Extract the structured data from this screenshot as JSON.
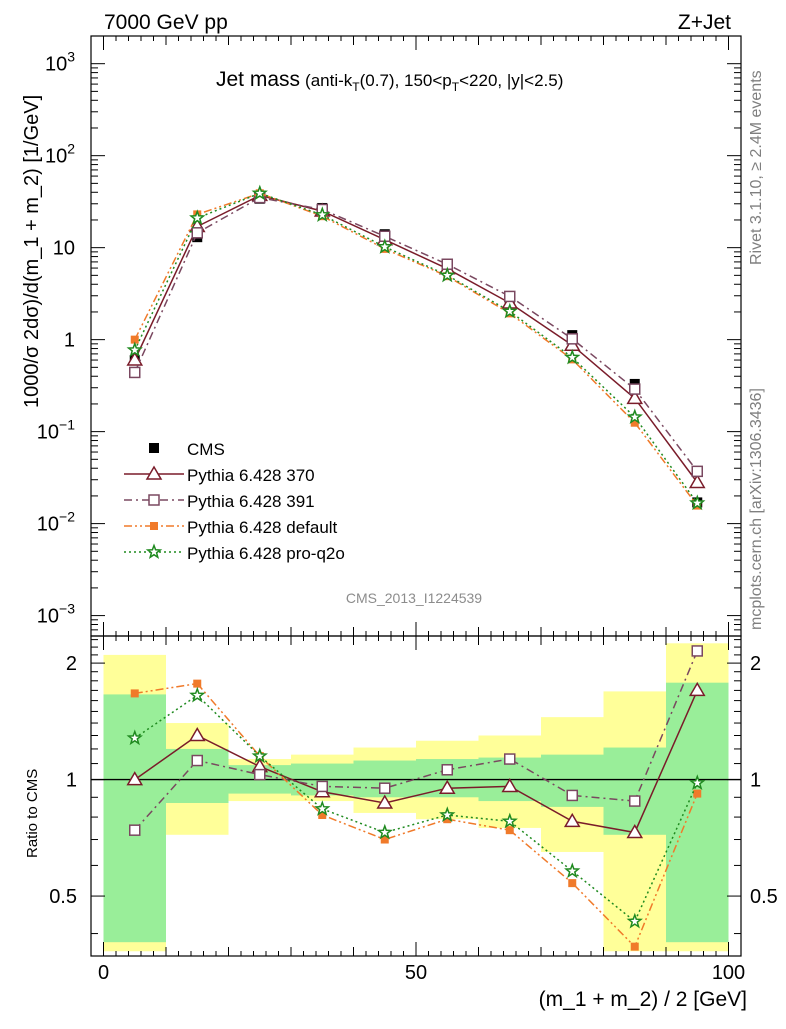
{
  "header": {
    "energy": "7000 GeV pp",
    "process": "Z+Jet",
    "rivet": "Rivet 3.1.10, ≥ 2.4M events",
    "source": "mcplots.cern.ch [arXiv:1306.3436]",
    "analysis": "CMS_2013_I1224539"
  },
  "chart_data": [
    {
      "panel": "main",
      "type": "line",
      "title": "Jet mass",
      "title_sub": {
        "pre": "(anti-k",
        "sub1": "T",
        "mid": "(0.7), 150<p",
        "sub2": "T",
        "post": "<220, |y|<2.5)"
      },
      "ylabel": "1000/σ 2dσ)/d(m_1 + m_2) [1/GeV]",
      "xlabel": "(m_1 + m_2) / 2 [GeV]",
      "xlim": [
        -2,
        102
      ],
      "ylim": [
        0.0006,
        2000
      ],
      "yscale": "log",
      "x_ticks": [
        "0",
        "50",
        "100"
      ],
      "y_ticks": [
        {
          "base": "10",
          "exp": "−3"
        },
        {
          "base": "10",
          "exp": "−2"
        },
        {
          "base": "10",
          "exp": "−1"
        },
        {
          "base": "1",
          "exp": ""
        },
        {
          "base": "10",
          "exp": ""
        },
        {
          "base": "10",
          "exp": "2"
        },
        {
          "base": "10",
          "exp": "3"
        }
      ],
      "legend_position": "bottom-left",
      "x": [
        5,
        15,
        25,
        35,
        45,
        55,
        65,
        75,
        85,
        95
      ],
      "series": [
        {
          "name": "CMS",
          "color": "#000000",
          "marker": "filled-square",
          "line": "none",
          "values": [
            0.6,
            13,
            34,
            27,
            14,
            6.2,
            2.6,
            1.12,
            0.33,
            0.017
          ]
        },
        {
          "name": "Pythia 6.428 370",
          "color": "#7a1c2a",
          "marker": "open-triangle",
          "line": "solid",
          "values": [
            0.6,
            17,
            37,
            25,
            12.2,
            5.9,
            2.5,
            0.87,
            0.23,
            0.028
          ]
        },
        {
          "name": "Pythia 6.428 391",
          "color": "#7a4860",
          "marker": "open-square",
          "line": "dashdot",
          "values": [
            0.44,
            14.5,
            35,
            26,
            13.3,
            6.6,
            2.95,
            1.02,
            0.29,
            0.037
          ]
        },
        {
          "name": "Pythia 6.428 default",
          "color": "#f07a2a",
          "marker": "filled-square-small",
          "line": "dashdotdot",
          "values": [
            1.0,
            23,
            39,
            22,
            9.7,
            4.9,
            1.93,
            0.61,
            0.125,
            0.0157
          ]
        },
        {
          "name": "Pythia 6.428 pro-q2o",
          "color": "#1f8a1f",
          "marker": "open-star",
          "line": "dotted",
          "values": [
            0.77,
            21,
            39,
            22.7,
            10.2,
            5.0,
            2.03,
            0.64,
            0.144,
            0.0167
          ]
        }
      ]
    },
    {
      "panel": "ratio",
      "type": "line",
      "ylabel": "Ratio to CMS",
      "xlabel": "(m_1 + m_2) / 2 [GeV]",
      "xlim": [
        -2,
        102
      ],
      "ylim": [
        0.35,
        2.35
      ],
      "yscale": "log",
      "y_ticks": [
        "0.5",
        "1",
        "2"
      ],
      "reference": 1.0,
      "bins": [
        [
          0,
          10
        ],
        [
          10,
          20
        ],
        [
          20,
          30
        ],
        [
          30,
          40
        ],
        [
          40,
          50
        ],
        [
          50,
          60
        ],
        [
          60,
          70
        ],
        [
          70,
          80
        ],
        [
          80,
          90
        ],
        [
          90,
          100
        ]
      ],
      "band_stat": [
        [
          0.38,
          1.66
        ],
        [
          0.87,
          1.2
        ],
        [
          0.92,
          1.09
        ],
        [
          0.91,
          1.1
        ],
        [
          0.9,
          1.12
        ],
        [
          0.9,
          1.13
        ],
        [
          0.88,
          1.14
        ],
        [
          0.85,
          1.16
        ],
        [
          0.72,
          1.21
        ],
        [
          0.38,
          1.78
        ]
      ],
      "band_total": [
        [
          0.36,
          2.1
        ],
        [
          0.72,
          1.4
        ],
        [
          0.88,
          1.13
        ],
        [
          0.88,
          1.16
        ],
        [
          0.82,
          1.21
        ],
        [
          0.79,
          1.26
        ],
        [
          0.75,
          1.3
        ],
        [
          0.65,
          1.45
        ],
        [
          0.36,
          1.69
        ],
        [
          0.36,
          2.25
        ]
      ],
      "x": [
        5,
        15,
        25,
        35,
        45,
        55,
        65,
        75,
        85,
        95
      ],
      "series": [
        {
          "name": "Pythia 6.428 370",
          "color": "#7a1c2a",
          "marker": "open-triangle",
          "line": "solid",
          "values": [
            1.0,
            1.3,
            1.08,
            0.93,
            0.87,
            0.95,
            0.96,
            0.78,
            0.73,
            1.7
          ]
        },
        {
          "name": "Pythia 6.428 391",
          "color": "#7a4860",
          "marker": "open-square",
          "line": "dashdot",
          "values": [
            0.74,
            1.12,
            1.03,
            0.96,
            0.95,
            1.06,
            1.13,
            0.91,
            0.88,
            2.15
          ]
        },
        {
          "name": "Pythia 6.428 default",
          "color": "#f07a2a",
          "marker": "filled-square-small",
          "line": "dashdotdot",
          "values": [
            1.67,
            1.77,
            1.15,
            0.81,
            0.7,
            0.79,
            0.74,
            0.54,
            0.37,
            0.92
          ]
        },
        {
          "name": "Pythia 6.428 pro-q2o",
          "color": "#1f8a1f",
          "marker": "open-star",
          "line": "dotted",
          "values": [
            1.28,
            1.65,
            1.15,
            0.84,
            0.73,
            0.81,
            0.78,
            0.58,
            0.43,
            0.98
          ]
        }
      ]
    }
  ]
}
